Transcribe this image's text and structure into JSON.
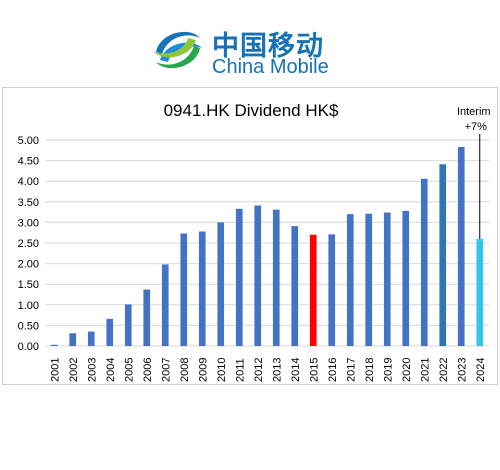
{
  "logo": {
    "chinese": "中国移动",
    "english": "China Mobile",
    "color": "#1572b6"
  },
  "chart_data": {
    "type": "bar",
    "title": "0941.HK Dividend HK$",
    "xlabel": "",
    "ylabel": "",
    "ylim": [
      0,
      5
    ],
    "yticks": [
      "0.00",
      "0.50",
      "1.00",
      "1.50",
      "2.00",
      "2.50",
      "3.00",
      "3.50",
      "4.00",
      "4.50",
      "5.00"
    ],
    "grid": true,
    "categories": [
      "2001",
      "2002",
      "2003",
      "2004",
      "2005",
      "2006",
      "2007",
      "2008",
      "2009",
      "2010",
      "2011",
      "2012",
      "2013",
      "2014",
      "2015",
      "2016",
      "2017",
      "2018",
      "2019",
      "2020",
      "2021",
      "2022",
      "2023",
      "2024"
    ],
    "values": [
      0.03,
      0.31,
      0.35,
      0.66,
      1.01,
      1.37,
      1.98,
      2.73,
      2.78,
      3.0,
      3.33,
      3.41,
      3.31,
      2.91,
      2.7,
      2.71,
      3.2,
      3.21,
      3.24,
      3.28,
      4.06,
      4.41,
      4.83,
      2.6
    ],
    "colors": [
      "#4472c4",
      "#4472c4",
      "#4472c4",
      "#4472c4",
      "#4472c4",
      "#4472c4",
      "#4472c4",
      "#4472c4",
      "#4472c4",
      "#4472c4",
      "#4472c4",
      "#4472c4",
      "#4472c4",
      "#4472c4",
      "#ff0000",
      "#4472c4",
      "#4472c4",
      "#4472c4",
      "#4472c4",
      "#4472c4",
      "#4472c4",
      "#2e75b6",
      "#4472c4",
      "#33c4f0"
    ],
    "annotation": {
      "line1": "Interim",
      "line2": "+7%",
      "category": "2024"
    }
  }
}
